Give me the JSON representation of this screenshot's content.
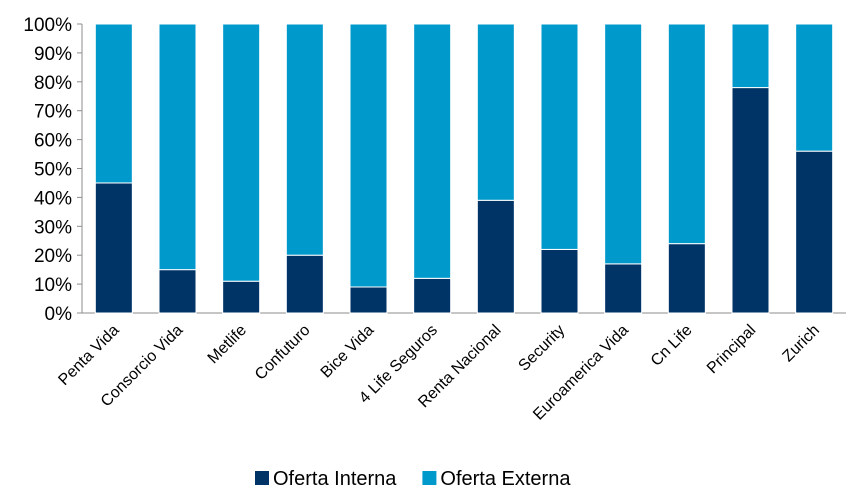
{
  "chart_data": {
    "type": "bar",
    "stacked": true,
    "percent": true,
    "categories": [
      "Penta Vida",
      "Consorcio Vida",
      "Metlife",
      "Confuturo",
      "Bice Vida",
      "4 Life Seguros",
      "Renta Nacional",
      "Security",
      "Euroamerica Vida",
      "Cn Life",
      "Principal",
      "Zurich"
    ],
    "series": [
      {
        "name": "Oferta Interna",
        "color": "#003366",
        "values": [
          45,
          15,
          11,
          20,
          9,
          12,
          39,
          22,
          17,
          24,
          78,
          56
        ]
      },
      {
        "name": "Oferta Externa",
        "color": "#0099cc",
        "values": [
          55,
          85,
          89,
          80,
          91,
          88,
          61,
          78,
          83,
          76,
          22,
          44
        ]
      }
    ],
    "ylim": [
      0,
      100
    ],
    "yticks": [
      "0%",
      "10%",
      "20%",
      "30%",
      "40%",
      "50%",
      "60%",
      "70%",
      "80%",
      "90%",
      "100%"
    ],
    "grid": false,
    "legend": "bottom"
  }
}
